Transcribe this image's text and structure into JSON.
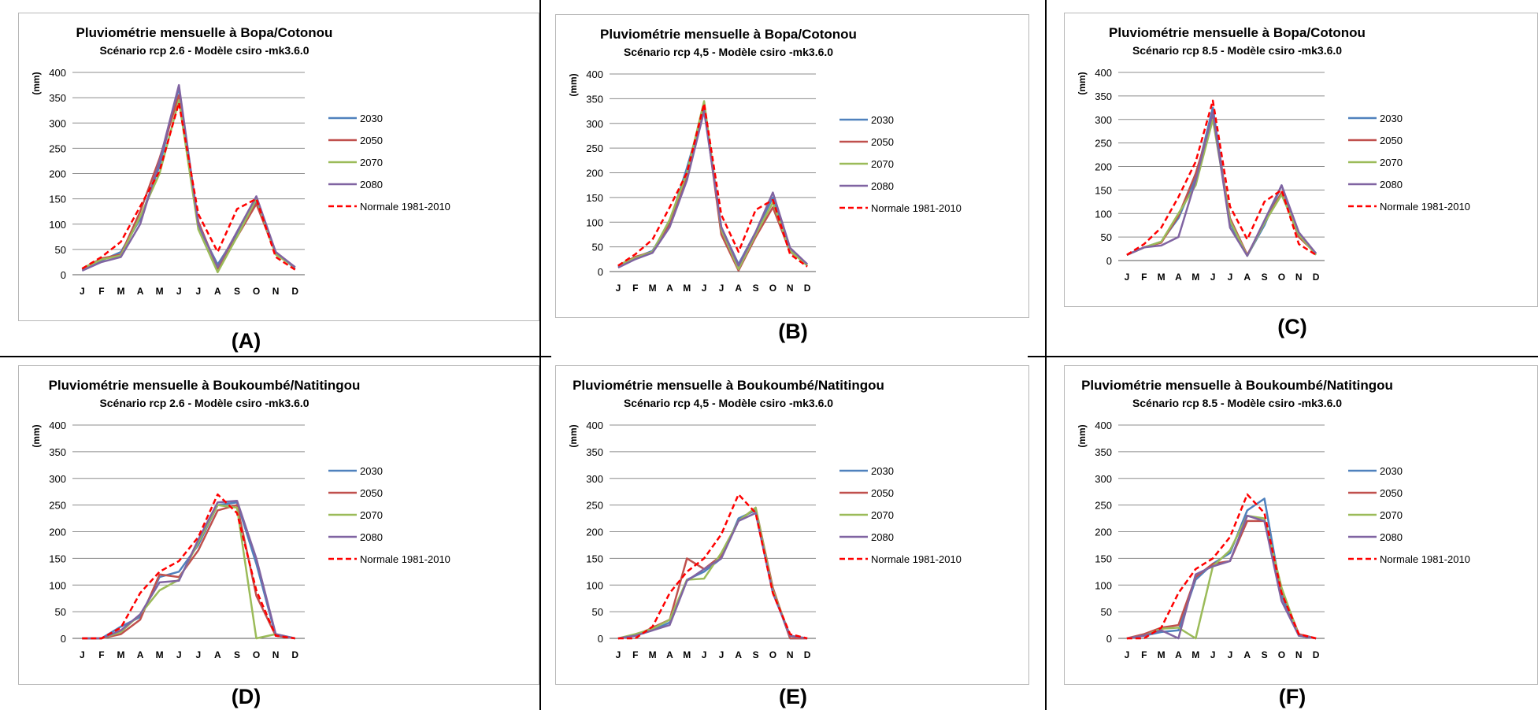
{
  "colors": {
    "2030": "#4f81bd",
    "2050": "#c0504d",
    "2070": "#9bbb59",
    "2080": "#8064a2",
    "normale": "#ff0000",
    "grid": "#8c8c8c"
  },
  "chart_data": [
    {
      "type": "line",
      "panel_label": "(A)",
      "title": "Pluviométrie mensuelle à Bopa/Cotonou",
      "subtitle": "Scénario rcp 2.6 - Modèle csiro -mk3.6.0",
      "ylabel": "(mm)",
      "ylim": [
        0,
        400
      ],
      "yticks": [
        "0",
        "50",
        "100",
        "150",
        "200",
        "250",
        "300",
        "350",
        "400"
      ],
      "categories": [
        "J",
        "F",
        "M",
        "A",
        "M",
        "J",
        "J",
        "A",
        "S",
        "O",
        "N",
        "D"
      ],
      "legend_position": "right",
      "series": [
        {
          "name": "2030",
          "color_key": "2030",
          "dashed": false,
          "values": [
            10,
            28,
            45,
            110,
            215,
            370,
            95,
            20,
            80,
            145,
            45,
            12
          ]
        },
        {
          "name": "2050",
          "color_key": "2050",
          "dashed": false,
          "values": [
            12,
            32,
            40,
            125,
            230,
            355,
            105,
            12,
            75,
            140,
            42,
            15
          ]
        },
        {
          "name": "2070",
          "color_key": "2070",
          "dashed": false,
          "values": [
            12,
            30,
            38,
            115,
            200,
            345,
            90,
            5,
            75,
            150,
            40,
            15
          ]
        },
        {
          "name": "2080",
          "color_key": "2080",
          "dashed": false,
          "values": [
            8,
            25,
            35,
            100,
            225,
            375,
            100,
            15,
            85,
            155,
            45,
            15
          ]
        },
        {
          "name": "Normale 1981-2010",
          "color_key": "normale",
          "dashed": true,
          "values": [
            12,
            35,
            65,
            135,
            205,
            340,
            120,
            45,
            130,
            150,
            35,
            10
          ]
        }
      ]
    },
    {
      "type": "line",
      "panel_label": "(B)",
      "title": "Pluviométrie mensuelle à Bopa/Cotonou",
      "subtitle": "Scénario rcp 4,5 - Modèle csiro -mk3.6.0",
      "ylabel": "(mm)",
      "ylim": [
        0,
        400
      ],
      "yticks": [
        "0",
        "50",
        "100",
        "150",
        "200",
        "250",
        "300",
        "350",
        "400"
      ],
      "categories": [
        "J",
        "F",
        "M",
        "A",
        "M",
        "J",
        "J",
        "A",
        "S",
        "O",
        "N",
        "D"
      ],
      "legend_position": "right",
      "series": [
        {
          "name": "2030",
          "color_key": "2030",
          "dashed": false,
          "values": [
            10,
            28,
            42,
            100,
            210,
            330,
            90,
            15,
            80,
            150,
            45,
            15
          ]
        },
        {
          "name": "2050",
          "color_key": "2050",
          "dashed": false,
          "values": [
            12,
            30,
            40,
            95,
            190,
            335,
            75,
            2,
            70,
            130,
            40,
            15
          ]
        },
        {
          "name": "2070",
          "color_key": "2070",
          "dashed": false,
          "values": [
            12,
            28,
            40,
            105,
            200,
            345,
            85,
            5,
            75,
            140,
            42,
            12
          ]
        },
        {
          "name": "2080",
          "color_key": "2080",
          "dashed": false,
          "values": [
            8,
            25,
            38,
            90,
            185,
            325,
            90,
            12,
            80,
            160,
            48,
            15
          ]
        },
        {
          "name": "Normale 1981-2010",
          "color_key": "normale",
          "dashed": true,
          "values": [
            12,
            35,
            65,
            130,
            200,
            340,
            115,
            40,
            125,
            145,
            35,
            10
          ]
        }
      ]
    },
    {
      "type": "line",
      "panel_label": "(C)",
      "title": "Pluviométrie mensuelle à Bopa/Cotonou",
      "subtitle": "Scénario rcp 8.5 - Modèle csiro -mk3.6.0",
      "ylabel": "(mm)",
      "ylim": [
        0,
        400
      ],
      "yticks": [
        "0",
        "50",
        "100",
        "150",
        "200",
        "250",
        "300",
        "350",
        "400"
      ],
      "categories": [
        "J",
        "F",
        "M",
        "A",
        "M",
        "J",
        "J",
        "A",
        "S",
        "O",
        "N",
        "D"
      ],
      "legend_position": "right",
      "series": [
        {
          "name": "2030",
          "color_key": "2030",
          "dashed": false,
          "values": [
            12,
            28,
            40,
            90,
            175,
            325,
            80,
            10,
            75,
            160,
            55,
            15
          ]
        },
        {
          "name": "2050",
          "color_key": "2050",
          "dashed": false,
          "values": [
            12,
            28,
            38,
            95,
            185,
            305,
            90,
            12,
            80,
            145,
            50,
            15
          ]
        },
        {
          "name": "2070",
          "color_key": "2070",
          "dashed": false,
          "values": [
            12,
            28,
            40,
            100,
            160,
            300,
            85,
            10,
            80,
            140,
            55,
            12
          ]
        },
        {
          "name": "2080",
          "color_key": "2080",
          "dashed": false,
          "values": [
            12,
            28,
            32,
            50,
            170,
            315,
            70,
            10,
            85,
            160,
            60,
            15
          ]
        },
        {
          "name": "Normale 1981-2010",
          "color_key": "normale",
          "dashed": true,
          "values": [
            12,
            35,
            70,
            135,
            210,
            340,
            115,
            45,
            125,
            150,
            35,
            12
          ]
        }
      ]
    },
    {
      "type": "line",
      "panel_label": "(D)",
      "title": "Pluviométrie mensuelle à Boukoumbé/Natitingou",
      "subtitle": "Scénario rcp 2.6 - Modèle csiro -mk3.6.0",
      "ylabel": "(mm)",
      "ylim": [
        0,
        400
      ],
      "yticks": [
        "0",
        "50",
        "100",
        "150",
        "200",
        "250",
        "300",
        "350",
        "400"
      ],
      "categories": [
        "J",
        "F",
        "M",
        "A",
        "M",
        "J",
        "J",
        "A",
        "S",
        "O",
        "N",
        "D"
      ],
      "legend_position": "right",
      "series": [
        {
          "name": "2030",
          "color_key": "2030",
          "dashed": false,
          "values": [
            0,
            0,
            22,
            40,
            115,
            125,
            175,
            250,
            255,
            140,
            5,
            0
          ]
        },
        {
          "name": "2050",
          "color_key": "2050",
          "dashed": false,
          "values": [
            0,
            0,
            8,
            35,
            120,
            115,
            165,
            240,
            250,
            80,
            5,
            0
          ]
        },
        {
          "name": "2070",
          "color_key": "2070",
          "dashed": false,
          "values": [
            0,
            0,
            12,
            45,
            90,
            110,
            180,
            250,
            245,
            0,
            8,
            0
          ]
        },
        {
          "name": "2080",
          "color_key": "2080",
          "dashed": false,
          "values": [
            0,
            0,
            15,
            45,
            105,
            108,
            185,
            255,
            258,
            150,
            8,
            0
          ]
        },
        {
          "name": "Normale 1981-2010",
          "color_key": "normale",
          "dashed": true,
          "values": [
            0,
            0,
            20,
            85,
            125,
            145,
            190,
            270,
            235,
            90,
            5,
            0
          ]
        }
      ]
    },
    {
      "type": "line",
      "panel_label": "(E)",
      "title": "Pluviométrie mensuelle à Boukoumbé/Natitingou",
      "subtitle": "Scénario rcp 4,5 - Modèle csiro -mk3.6.0",
      "ylabel": "(mm)",
      "ylim": [
        0,
        400
      ],
      "yticks": [
        "0",
        "50",
        "100",
        "150",
        "200",
        "250",
        "300",
        "350",
        "400"
      ],
      "categories": [
        "J",
        "F",
        "M",
        "A",
        "M",
        "J",
        "J",
        "A",
        "S",
        "O",
        "N",
        "D"
      ],
      "legend_position": "right",
      "series": [
        {
          "name": "2030",
          "color_key": "2030",
          "dashed": false,
          "values": [
            0,
            5,
            15,
            30,
            110,
            125,
            150,
            225,
            240,
            90,
            0,
            0
          ]
        },
        {
          "name": "2050",
          "color_key": "2050",
          "dashed": false,
          "values": [
            0,
            5,
            20,
            35,
            150,
            130,
            155,
            220,
            245,
            95,
            0,
            0
          ]
        },
        {
          "name": "2070",
          "color_key": "2070",
          "dashed": false,
          "values": [
            0,
            8,
            18,
            35,
            110,
            112,
            160,
            220,
            245,
            90,
            5,
            0
          ]
        },
        {
          "name": "2080",
          "color_key": "2080",
          "dashed": false,
          "values": [
            0,
            5,
            15,
            25,
            108,
            130,
            150,
            220,
            235,
            85,
            5,
            0
          ]
        },
        {
          "name": "Normale 1981-2010",
          "color_key": "normale",
          "dashed": true,
          "values": [
            0,
            0,
            22,
            85,
            125,
            150,
            195,
            270,
            235,
            85,
            8,
            0
          ]
        }
      ]
    },
    {
      "type": "line",
      "panel_label": "(F)",
      "title": "Pluviométrie mensuelle à Boukoumbé/Natitingou",
      "subtitle": "Scénario rcp 8.5 - Modèle csiro -mk3.6.0",
      "ylabel": "(mm)",
      "ylim": [
        0,
        400
      ],
      "yticks": [
        "0",
        "50",
        "100",
        "150",
        "200",
        "250",
        "300",
        "350",
        "400"
      ],
      "categories": [
        "J",
        "F",
        "M",
        "A",
        "M",
        "J",
        "J",
        "A",
        "S",
        "O",
        "N",
        "D"
      ],
      "legend_position": "right",
      "series": [
        {
          "name": "2030",
          "color_key": "2030",
          "dashed": false,
          "values": [
            0,
            5,
            12,
            15,
            110,
            140,
            160,
            240,
            262,
            80,
            5,
            0
          ]
        },
        {
          "name": "2050",
          "color_key": "2050",
          "dashed": false,
          "values": [
            0,
            8,
            20,
            25,
            115,
            140,
            145,
            220,
            220,
            90,
            8,
            0
          ]
        },
        {
          "name": "2070",
          "color_key": "2070",
          "dashed": false,
          "values": [
            0,
            5,
            18,
            20,
            0,
            135,
            165,
            230,
            225,
            95,
            5,
            0
          ]
        },
        {
          "name": "2080",
          "color_key": "2080",
          "dashed": false,
          "values": [
            0,
            5,
            15,
            0,
            120,
            135,
            145,
            230,
            220,
            70,
            5,
            0
          ]
        },
        {
          "name": "Normale 1981-2010",
          "color_key": "normale",
          "dashed": true,
          "values": [
            0,
            0,
            20,
            85,
            130,
            150,
            190,
            270,
            235,
            85,
            8,
            0
          ]
        }
      ]
    }
  ]
}
